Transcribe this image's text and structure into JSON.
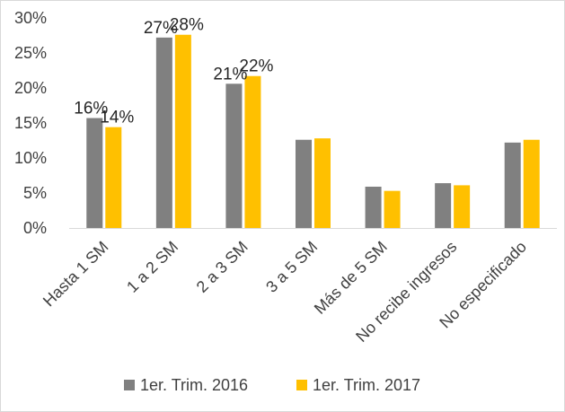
{
  "chart_data": {
    "type": "bar",
    "categories": [
      "Hasta 1 SM",
      "1 a 2 SM",
      "2 a 3 SM",
      "3 a 5 SM",
      "Más de 5 SM",
      "No recibe ingresos",
      "No especificado"
    ],
    "series": [
      {
        "name": "1er. Trim. 2016",
        "color": "#808080",
        "values": [
          15.7,
          27.2,
          20.6,
          12.6,
          5.9,
          6.4,
          12.2
        ],
        "data_labels": [
          "16%",
          "27%",
          "21%",
          null,
          null,
          null,
          null
        ]
      },
      {
        "name": "1er. Trim. 2017",
        "color": "#ffc000",
        "values": [
          14.4,
          27.6,
          21.7,
          12.8,
          5.3,
          6.1,
          12.6
        ],
        "data_labels": [
          "14%",
          "28%",
          "22%",
          null,
          null,
          null,
          null
        ]
      }
    ],
    "y_ticks": [
      "0%",
      "5%",
      "10%",
      "15%",
      "20%",
      "25%",
      "30%"
    ],
    "ylim": [
      0,
      30
    ],
    "grid": false,
    "legend_position": "bottom"
  }
}
